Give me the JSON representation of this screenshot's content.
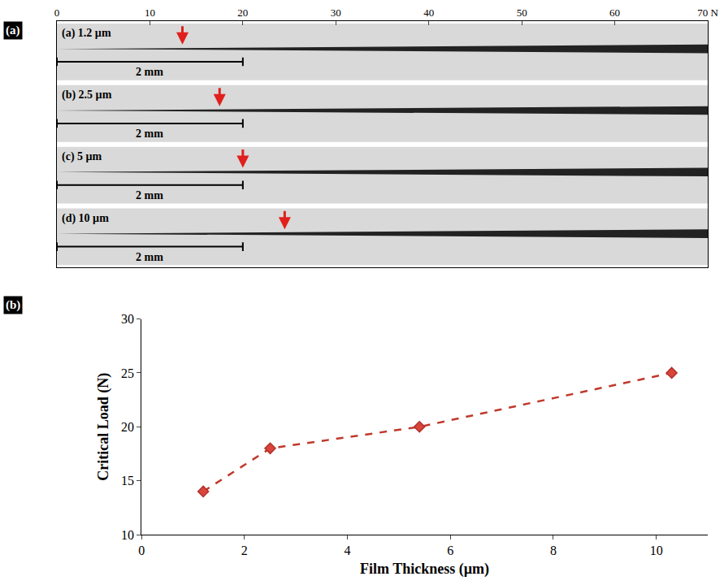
{
  "chart_data": [
    {
      "panel": "(a)",
      "type": "strips",
      "xlim": [
        0,
        70
      ],
      "xticks": [
        0,
        10,
        20,
        30,
        40,
        50,
        60,
        {
          "value": 70,
          "label": "70 N"
        }
      ],
      "color": "#e0201c",
      "tracks": [
        {
          "label": "(a) 1.2 µm",
          "arrow": 13.5,
          "scale_bar_label": "2 mm",
          "scale_bar_end": 20
        },
        {
          "label": "(b) 2.5 µm",
          "arrow": 17.5,
          "scale_bar_label": "2 mm",
          "scale_bar_end": 20
        },
        {
          "label": "(c) 5 µm",
          "arrow": 20,
          "scale_bar_label": "2 mm",
          "scale_bar_end": 20
        },
        {
          "label": "(d) 10 µm",
          "arrow": 24.5,
          "scale_bar_label": "2 mm",
          "scale_bar_end": 20
        }
      ]
    },
    {
      "panel": "(b)",
      "type": "line",
      "x_label": "Film Thickness (µm)",
      "y_label": "Critical Load (N)",
      "x": [
        1.2,
        2.5,
        5.4,
        10.3
      ],
      "values": [
        14,
        18,
        20,
        25
      ],
      "color": "#c0392b",
      "marker": "diamond",
      "line_style": "dash",
      "xlim": [
        0,
        11
      ],
      "xticks": [
        0,
        2,
        4,
        6,
        8,
        10
      ],
      "ylim": [
        10,
        30
      ],
      "yticks": [
        10,
        15,
        20,
        25,
        30
      ],
      "grid": false
    }
  ]
}
